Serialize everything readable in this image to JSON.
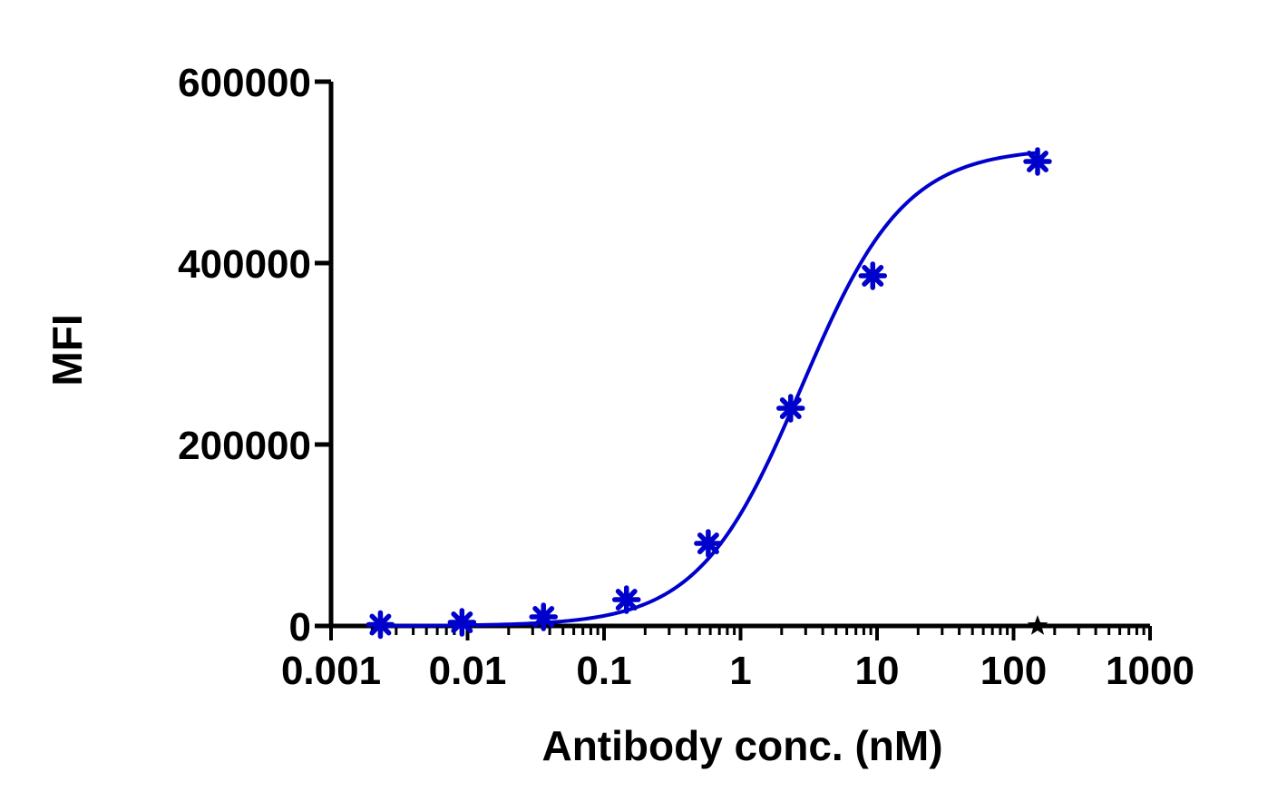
{
  "chart_data": {
    "type": "scatter",
    "xlabel": "Antibody conc. (nM)",
    "ylabel": "MFI",
    "xscale": "log",
    "xlim": [
      0.001,
      1000
    ],
    "ylim": [
      0,
      600000
    ],
    "xticks": [
      "0.001",
      "0.01",
      "0.1",
      "1",
      "10",
      "100",
      "1000"
    ],
    "yticks": [
      "0",
      "200000",
      "400000",
      "600000"
    ],
    "grid": false,
    "legend": "none",
    "series": [
      {
        "marker": "asterisk",
        "color": "#0000cc",
        "x": [
          0.0023,
          0.0091,
          0.036,
          0.146,
          0.58,
          2.33,
          9.3,
          150
        ],
        "y": [
          1500,
          4000,
          10000,
          29000,
          91000,
          240000,
          386000,
          512000
        ],
        "fit": "four-parameter logistic"
      },
      {
        "marker": "star",
        "color": "#000000",
        "x": [
          150
        ],
        "y": [
          0
        ]
      }
    ]
  }
}
